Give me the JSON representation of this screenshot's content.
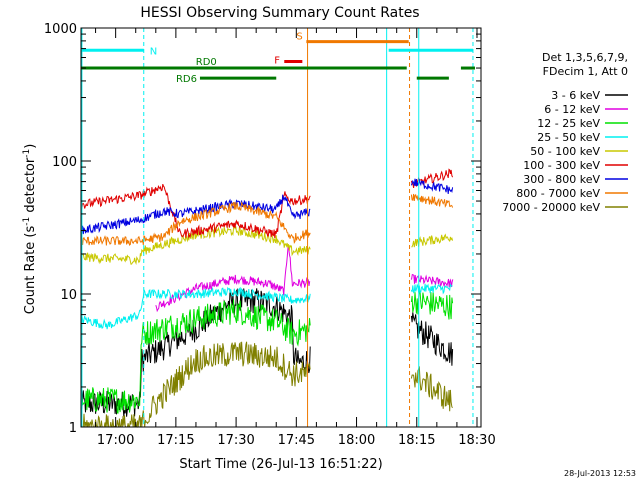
{
  "chart_data": {
    "type": "line",
    "title": "HESSI Observing Summary Count Rates",
    "xlabel": "Start Time (26-Jul-13 16:51:22)",
    "ylabel_parts": [
      "Count Rate (s",
      "-1",
      " detector",
      "-1",
      ")"
    ],
    "y_scale": "log",
    "ylim": [
      1,
      1000
    ],
    "xlim": [
      51.37,
      151.0
    ],
    "x_unit": "minutes after 16:00",
    "y_ticks": [
      {
        "value": 1,
        "label": "1"
      },
      {
        "value": 10,
        "label": "10"
      },
      {
        "value": 100,
        "label": "100"
      },
      {
        "value": 1000,
        "label": "1000"
      }
    ],
    "x_ticks": [
      {
        "value": 60,
        "label": "17:00"
      },
      {
        "value": 75,
        "label": "17:15"
      },
      {
        "value": 90,
        "label": "17:30"
      },
      {
        "value": 105,
        "label": "17:45"
      },
      {
        "value": 120,
        "label": "18:00"
      },
      {
        "value": 135,
        "label": "18:15"
      },
      {
        "value": 150,
        "label": "18:30"
      }
    ],
    "legend_header": [
      "Det 1,3,5,6,7,9,",
      "FDecim 1, Att 0"
    ],
    "legend_placement": "right",
    "gaps": [
      [
        108.5,
        133.5
      ]
    ],
    "series": [
      {
        "name": "3 - 6 keV",
        "color": "#000000",
        "values": [
          [
            51.4,
            1.5
          ],
          [
            66,
            1.5
          ],
          [
            66.5,
            3.2
          ],
          [
            80,
            5.5
          ],
          [
            88,
            8.5
          ],
          [
            95,
            9
          ],
          [
            100,
            8
          ],
          [
            104,
            6.5
          ],
          [
            104.2,
            3.5
          ],
          [
            105.5,
            3
          ],
          [
            133.5,
            6
          ],
          [
            144,
            3.5
          ]
        ]
      },
      {
        "name": "6 - 12 keV",
        "color": "#e000e0",
        "values": [
          [
            70,
            8
          ],
          [
            80,
            11
          ],
          [
            90,
            13
          ],
          [
            98,
            12
          ],
          [
            102,
            10.5
          ],
          [
            103,
            25
          ],
          [
            104,
            12
          ],
          [
            133.5,
            13
          ],
          [
            144,
            12
          ]
        ]
      },
      {
        "name": "12 - 25 keV",
        "color": "#00e000",
        "values": [
          [
            51.4,
            1.6
          ],
          [
            66,
            1.6
          ],
          [
            66.5,
            5
          ],
          [
            80,
            6.5
          ],
          [
            90,
            7.5
          ],
          [
            100,
            6.2
          ],
          [
            104,
            5
          ],
          [
            133.5,
            9
          ],
          [
            144,
            8
          ]
        ]
      },
      {
        "name": "25 - 50 keV",
        "color": "#00f0f0",
        "values": [
          [
            51.4,
            6.5
          ],
          [
            58,
            5.8
          ],
          [
            66,
            7
          ],
          [
            67,
            10
          ],
          [
            80,
            10
          ],
          [
            90,
            10.5
          ],
          [
            104,
            9
          ],
          [
            133.5,
            11
          ],
          [
            144,
            11
          ]
        ]
      },
      {
        "name": "50 - 100 keV",
        "color": "#c8c800",
        "values": [
          [
            51.4,
            19
          ],
          [
            66,
            18
          ],
          [
            66.5,
            21
          ],
          [
            80,
            28
          ],
          [
            90,
            30
          ],
          [
            100,
            26
          ],
          [
            104,
            21
          ],
          [
            133.5,
            24
          ],
          [
            144,
            27
          ]
        ]
      },
      {
        "name": "100 - 300 keV",
        "color": "#e00000",
        "values": [
          [
            51.4,
            47
          ],
          [
            66,
            55
          ],
          [
            72,
            65
          ],
          [
            76,
            28
          ],
          [
            90,
            34
          ],
          [
            100,
            28
          ],
          [
            102,
            55
          ],
          [
            104,
            50
          ],
          [
            133.5,
            66
          ],
          [
            144,
            82
          ]
        ]
      },
      {
        "name": "300 - 800 keV",
        "color": "#0000e0",
        "values": [
          [
            51.4,
            30
          ],
          [
            66,
            36
          ],
          [
            72,
            42
          ],
          [
            76,
            40
          ],
          [
            90,
            48
          ],
          [
            100,
            43
          ],
          [
            102,
            55
          ],
          [
            104,
            38
          ],
          [
            133.5,
            70
          ],
          [
            144,
            60
          ]
        ]
      },
      {
        "name": "800 - 7000 keV",
        "color": "#f07800",
        "values": [
          [
            51.4,
            25
          ],
          [
            66,
            25
          ],
          [
            72,
            27
          ],
          [
            76,
            35
          ],
          [
            90,
            46
          ],
          [
            100,
            38
          ],
          [
            104,
            26
          ],
          [
            133.5,
            55
          ],
          [
            144,
            46
          ]
        ]
      },
      {
        "name": "7000 - 20000 keV",
        "color": "#808000",
        "values": [
          [
            51.4,
            1
          ],
          [
            66,
            1
          ],
          [
            70,
            1.5
          ],
          [
            80,
            3.2
          ],
          [
            90,
            3.6
          ],
          [
            100,
            3.3
          ],
          [
            104,
            2.5
          ],
          [
            133.5,
            2.6
          ],
          [
            144,
            1.5
          ]
        ]
      }
    ],
    "annotations": [
      {
        "label": "N",
        "color": "#00f0f0",
        "x1": 51.4,
        "x2": 67.0,
        "y": 680
      },
      {
        "label": "",
        "color": "#00f0f0",
        "x1": 128.0,
        "x2": 149.0,
        "y": 680
      },
      {
        "label": "S",
        "color": "#f07800",
        "x1": 107.5,
        "x2": 133.0,
        "y": 790
      },
      {
        "label": "F",
        "color": "#e00000",
        "x1": 102.0,
        "x2": 106.5,
        "y": 560
      },
      {
        "label": "RD0",
        "color": "#007800",
        "x1": 51.4,
        "x2": 132.5,
        "y": 500
      },
      {
        "label": "RD6",
        "color": "#007800",
        "x1": 81.0,
        "x2": 100.0,
        "y": 420
      },
      {
        "label": "",
        "color": "#007800",
        "x1": 135.0,
        "x2": 143.0,
        "y": 420
      },
      {
        "label": "",
        "color": "#007800",
        "x1": 146.0,
        "x2": 149.5,
        "y": 500
      }
    ],
    "vlines": [
      {
        "x": 51.6,
        "color": "#00f0f0",
        "dash": false
      },
      {
        "x": 67.0,
        "color": "#00f0f0",
        "dash": true
      },
      {
        "x": 107.8,
        "color": "#f07800",
        "dash": false
      },
      {
        "x": 127.5,
        "color": "#00f0f0",
        "dash": false
      },
      {
        "x": 133.2,
        "color": "#f07800",
        "dash": true
      },
      {
        "x": 135.5,
        "color": "#00f0f0",
        "dash": false
      },
      {
        "x": 149.0,
        "color": "#00f0f0",
        "dash": true
      }
    ]
  },
  "footer_timestamp": "28-Jul-2013 12:53"
}
